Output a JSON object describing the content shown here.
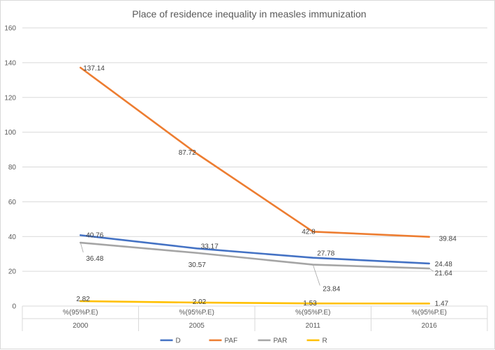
{
  "chart_data": {
    "type": "line",
    "title": "Place of residence inequality in measles immunization",
    "categories": [
      {
        "sub": "%(95%P.E)",
        "year": "2000"
      },
      {
        "sub": "%(95%P.E)",
        "year": "2005"
      },
      {
        "sub": "%(95%P.E)",
        "year": "2011"
      },
      {
        "sub": "%(95%P.E)",
        "year": "2016"
      }
    ],
    "ylim": [
      0,
      160
    ],
    "yticks": [
      0,
      20,
      40,
      60,
      80,
      100,
      120,
      140,
      160
    ],
    "grid": true,
    "legend_position": "bottom",
    "series": [
      {
        "name": "D",
        "color": "#4472C4",
        "values": [
          40.76,
          33.17,
          27.78,
          24.48
        ],
        "labels": [
          "40.76",
          "33.17",
          "27.78",
          "24.48"
        ]
      },
      {
        "name": "PAF",
        "color": "#ED7D31",
        "values": [
          137.14,
          87.72,
          42.8,
          39.84
        ],
        "labels": [
          "137.14",
          "87.72",
          "42.8",
          "39.84"
        ]
      },
      {
        "name": "PAR",
        "color": "#A5A5A5",
        "values": [
          36.48,
          30.57,
          23.84,
          21.64
        ],
        "labels": [
          "36.48",
          "30.57",
          "23.84",
          "21.64"
        ]
      },
      {
        "name": "R",
        "color": "#FFC000",
        "values": [
          2.82,
          2.02,
          1.53,
          1.47
        ],
        "labels": [
          "2.82",
          "2.02",
          "1.53",
          "1.47"
        ]
      }
    ]
  }
}
